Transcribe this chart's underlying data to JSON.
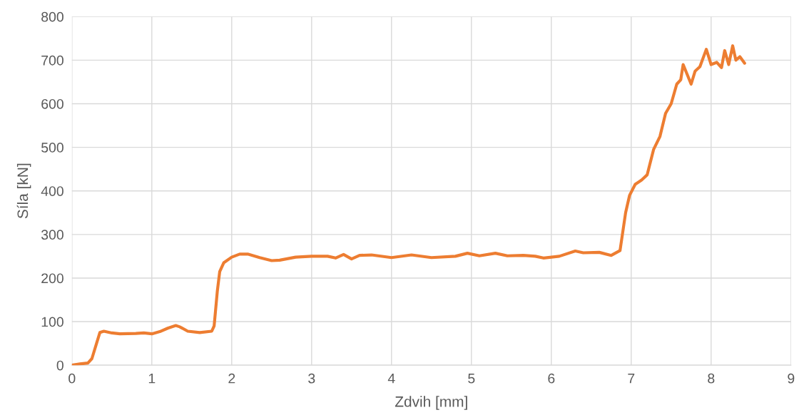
{
  "chart_data": {
    "type": "line",
    "xlabel": "Zdvih [mm]",
    "ylabel": "Síla [kN]",
    "xlim": [
      0,
      9
    ],
    "xticks": [
      0,
      1,
      2,
      3,
      4,
      5,
      6,
      7,
      8,
      9
    ],
    "ylim": [
      0,
      800
    ],
    "yticks": [
      0,
      100,
      200,
      300,
      400,
      500,
      600,
      700,
      800
    ],
    "grid": true,
    "marker": "none",
    "line_style": "solid",
    "series": [
      {
        "color": "#ed7d31",
        "x": [
          0,
          0.1,
          0.2,
          0.25,
          0.3,
          0.35,
          0.4,
          0.5,
          0.6,
          0.8,
          0.9,
          1.0,
          1.1,
          1.2,
          1.3,
          1.35,
          1.45,
          1.6,
          1.75,
          1.78,
          1.82,
          1.85,
          1.9,
          2.0,
          2.1,
          2.2,
          2.35,
          2.5,
          2.6,
          2.8,
          3.0,
          3.2,
          3.3,
          3.4,
          3.5,
          3.6,
          3.75,
          4.0,
          4.25,
          4.5,
          4.8,
          4.95,
          5.1,
          5.3,
          5.45,
          5.65,
          5.8,
          5.9,
          6.1,
          6.3,
          6.4,
          6.6,
          6.75,
          6.86,
          6.93,
          6.98,
          7.05,
          7.13,
          7.2,
          7.28,
          7.36,
          7.43,
          7.5,
          7.57,
          7.62,
          7.65,
          7.75,
          7.8,
          7.86,
          7.94,
          8.0,
          8.07,
          8.13,
          8.17,
          8.22,
          8.27,
          8.31,
          8.36,
          8.42
        ],
        "values": [
          0,
          3,
          5,
          15,
          45,
          75,
          78,
          74,
          72,
          73,
          74,
          72,
          77,
          85,
          91,
          88,
          78,
          75,
          78,
          90,
          170,
          215,
          235,
          248,
          255,
          255,
          247,
          240,
          241,
          248,
          250,
          250,
          246,
          254,
          244,
          252,
          253,
          247,
          253,
          247,
          250,
          257,
          251,
          257,
          251,
          252,
          250,
          246,
          250,
          262,
          258,
          259,
          252,
          263,
          350,
          390,
          415,
          425,
          437,
          495,
          525,
          578,
          600,
          645,
          655,
          690,
          645,
          675,
          685,
          725,
          690,
          695,
          683,
          722,
          690,
          733,
          700,
          708,
          693
        ]
      }
    ]
  }
}
